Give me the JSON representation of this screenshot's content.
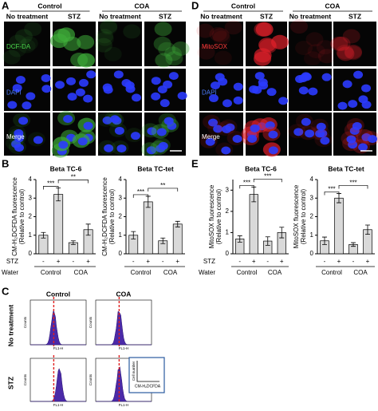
{
  "panels": {
    "a": "A",
    "b": "B",
    "c": "C",
    "d": "D",
    "e": "E"
  },
  "microscopy": [
    {
      "groups": [
        "Control",
        "COA"
      ],
      "columns": [
        "No treatment",
        "STZ",
        "No treatment",
        "STZ"
      ],
      "rows": [
        "DCF-DA",
        "DAPI",
        "Merge"
      ]
    },
    {
      "groups": [
        "Control",
        "COA"
      ],
      "columns": [
        "No treatment",
        "STZ",
        "No treatment",
        "STZ"
      ],
      "rows": [
        "MitoSOX",
        "DAPI",
        "Merge"
      ]
    }
  ],
  "chart_data": [
    {
      "type": "bar",
      "title": "Beta TC-6",
      "ylabel": [
        "CM-H₂DCFDA fluorescence",
        "(Relative to control)"
      ],
      "categories": [
        "-",
        "+",
        "-",
        "+"
      ],
      "values": [
        1,
        3.2,
        0.6,
        1.3
      ],
      "errors": [
        0.15,
        0.35,
        0.1,
        0.3
      ],
      "ylim": [
        0,
        4
      ],
      "yticks": [
        0,
        1,
        2,
        3,
        4
      ],
      "annotations": [
        "***",
        "**"
      ],
      "groups": [
        "Control",
        "COA"
      ],
      "category_label": "STZ",
      "group_label": "Water"
    },
    {
      "type": "bar",
      "title": "Beta TC-tet",
      "ylabel": [
        "CM-H₂DCFDA fluorescence",
        "(Relative to control)"
      ],
      "categories": [
        "-",
        "+",
        "-",
        "+"
      ],
      "values": [
        1,
        2.8,
        0.7,
        1.6
      ],
      "errors": [
        0.2,
        0.3,
        0.15,
        0.15
      ],
      "ylim": [
        0,
        4
      ],
      "yticks": [
        0,
        1,
        2,
        3,
        4
      ],
      "annotations": [
        "***",
        "**"
      ],
      "groups": [
        "Control",
        "COA"
      ]
    },
    {
      "type": "bar",
      "title": "Beta TC-6",
      "ylabel": [
        "MitoSOX fluorescence",
        "(Relative to control)"
      ],
      "categories": [
        "-",
        "+",
        "-",
        "+"
      ],
      "values": [
        0.7,
        2.8,
        0.6,
        1.0
      ],
      "errors": [
        0.15,
        0.35,
        0.2,
        0.25
      ],
      "ylim": [
        0,
        3.5
      ],
      "yticks": [
        0,
        1,
        2,
        3
      ],
      "annotations": [
        "***",
        "***"
      ],
      "groups": [
        "Control",
        "COA"
      ],
      "category_label": "STZ",
      "group_label": "Water"
    },
    {
      "type": "bar",
      "title": "Beta TC-tet",
      "ylabel": [
        "MitoSOX fluorescence",
        "(Relative to control)"
      ],
      "categories": [
        "-",
        "+",
        "-",
        "+"
      ],
      "values": [
        0.7,
        3.0,
        0.5,
        1.3
      ],
      "errors": [
        0.2,
        0.25,
        0.1,
        0.25
      ],
      "ylim": [
        0,
        4
      ],
      "yticks": [
        0,
        1,
        2,
        3,
        4
      ],
      "annotations": [
        "***",
        "***"
      ],
      "groups": [
        "Control",
        "COA"
      ]
    }
  ],
  "flow": {
    "columns": [
      "Control",
      "COA"
    ],
    "rows": [
      "No treatment",
      "STZ"
    ],
    "xlabel": "FL1-H",
    "ylabel": "Counts",
    "legend": {
      "y": "Cell number",
      "x": "CM-H₂DCFDA"
    }
  }
}
